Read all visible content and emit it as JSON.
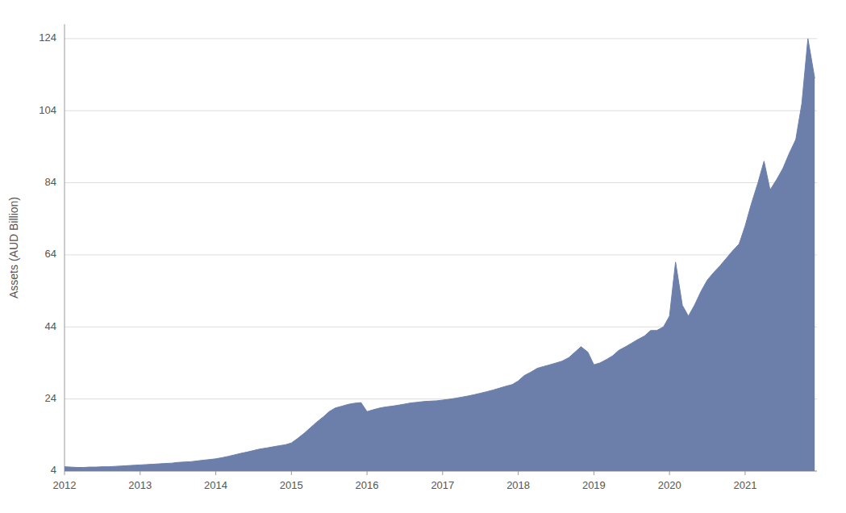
{
  "chart_data": {
    "type": "area",
    "ylabel": "Assets (AUD Billion)",
    "color": "#6b7faa",
    "grid": true,
    "ylim": [
      4,
      128
    ],
    "yticks": [
      4,
      24,
      44,
      64,
      84,
      104,
      124
    ],
    "xlim": [
      2012.0,
      2021.95
    ],
    "xticks": [
      2012,
      2013,
      2014,
      2015,
      2016,
      2017,
      2018,
      2019,
      2020,
      2021
    ],
    "x": [
      2012.0,
      2012.08,
      2012.17,
      2012.25,
      2012.33,
      2012.42,
      2012.5,
      2012.58,
      2012.67,
      2012.75,
      2012.83,
      2012.92,
      2013.0,
      2013.08,
      2013.17,
      2013.25,
      2013.33,
      2013.42,
      2013.5,
      2013.58,
      2013.67,
      2013.75,
      2013.83,
      2013.92,
      2014.0,
      2014.08,
      2014.17,
      2014.25,
      2014.33,
      2014.42,
      2014.5,
      2014.58,
      2014.67,
      2014.75,
      2014.83,
      2014.92,
      2015.0,
      2015.08,
      2015.17,
      2015.25,
      2015.33,
      2015.42,
      2015.5,
      2015.58,
      2015.67,
      2015.75,
      2015.83,
      2015.92,
      2016.0,
      2016.08,
      2016.17,
      2016.25,
      2016.33,
      2016.42,
      2016.5,
      2016.58,
      2016.67,
      2016.75,
      2016.83,
      2016.92,
      2017.0,
      2017.08,
      2017.17,
      2017.25,
      2017.33,
      2017.42,
      2017.5,
      2017.58,
      2017.67,
      2017.75,
      2017.83,
      2017.92,
      2018.0,
      2018.08,
      2018.17,
      2018.25,
      2018.33,
      2018.42,
      2018.5,
      2018.58,
      2018.67,
      2018.75,
      2018.83,
      2018.92,
      2019.0,
      2019.08,
      2019.17,
      2019.25,
      2019.33,
      2019.42,
      2019.5,
      2019.58,
      2019.67,
      2019.75,
      2019.83,
      2019.92,
      2020.0,
      2020.08,
      2020.17,
      2020.25,
      2020.33,
      2020.42,
      2020.5,
      2020.58,
      2020.67,
      2020.75,
      2020.83,
      2020.92,
      2021.0,
      2021.08,
      2021.17,
      2021.25,
      2021.33,
      2021.42,
      2021.5,
      2021.58,
      2021.67,
      2021.75,
      2021.83,
      2021.92
    ],
    "values": [
      5.2,
      5.1,
      5.0,
      5.0,
      5.1,
      5.1,
      5.2,
      5.2,
      5.3,
      5.4,
      5.5,
      5.6,
      5.7,
      5.8,
      5.9,
      6.0,
      6.1,
      6.2,
      6.4,
      6.5,
      6.6,
      6.8,
      7.0,
      7.2,
      7.4,
      7.7,
      8.1,
      8.5,
      8.9,
      9.3,
      9.7,
      10.1,
      10.4,
      10.7,
      11.0,
      11.3,
      11.8,
      13.0,
      14.5,
      16.0,
      17.5,
      19.0,
      20.5,
      21.5,
      22.0,
      22.5,
      22.8,
      23.0,
      20.5,
      21.0,
      21.5,
      21.8,
      22.0,
      22.3,
      22.6,
      22.9,
      23.1,
      23.3,
      23.4,
      23.5,
      23.7,
      23.9,
      24.2,
      24.5,
      24.8,
      25.2,
      25.6,
      26.0,
      26.5,
      27.0,
      27.5,
      28.0,
      29.0,
      30.5,
      31.5,
      32.5,
      33.0,
      33.5,
      34.0,
      34.5,
      35.5,
      37.0,
      38.5,
      37.0,
      33.5,
      34.0,
      35.0,
      36.0,
      37.5,
      38.5,
      39.5,
      40.5,
      41.5,
      43.0,
      43.0,
      44.0,
      47.0,
      62.0,
      50.0,
      47.0,
      50.0,
      54.0,
      57.0,
      59.0,
      61.0,
      63.0,
      65.0,
      67.0,
      72.0,
      78.0,
      84.0,
      90.0,
      82.0,
      85.0,
      88.0,
      92.0,
      96.0,
      106.0,
      124.0,
      113.0
    ]
  }
}
